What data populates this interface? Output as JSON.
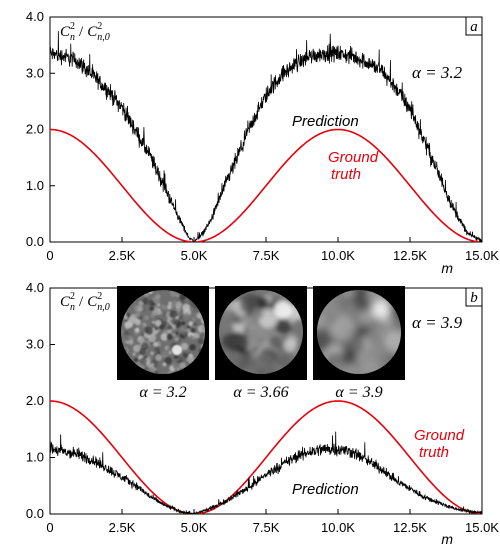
{
  "figure": {
    "xtick_labels": [
      "0",
      "2.5K",
      "5.0K",
      "7.5K",
      "10.0K",
      "12.5K",
      "15.0K"
    ],
    "ytick_labels": [
      "0.0",
      "1.0",
      "2.0",
      "3.0",
      "4.0"
    ],
    "xlabel": "m",
    "ylabel_num": "C",
    "ylabel_num_sup": "2",
    "ylabel_num_sub": "n",
    "ylabel_slash": "/",
    "ylabel_den": "C",
    "ylabel_den_sup": "2",
    "ylabel_den_sub": "n,0"
  },
  "chart_data": [
    {
      "type": "line",
      "panel_label": "a",
      "annotation": "α = 3.2",
      "xlim": [
        0,
        15000
      ],
      "ylim": [
        0,
        4
      ],
      "xticks": [
        0,
        2500,
        5000,
        7500,
        10000,
        12500,
        15000
      ],
      "yticks": [
        0,
        1,
        2,
        3,
        4
      ],
      "grid": false,
      "series": [
        {
          "name": "Prediction",
          "color": "#000000",
          "x": [
            0,
            500,
            1000,
            1500,
            2000,
            2500,
            3000,
            3500,
            4000,
            4500,
            4800,
            5000,
            5300,
            5600,
            6000,
            6500,
            7000,
            7500,
            8000,
            8500,
            9000,
            9500,
            10000,
            10500,
            11000,
            11500,
            12000,
            12500,
            13000,
            13500,
            14000,
            14500,
            15000
          ],
          "y": [
            3.35,
            3.3,
            3.2,
            2.95,
            2.7,
            2.4,
            1.95,
            1.5,
            0.95,
            0.4,
            0.1,
            0.0,
            0.15,
            0.4,
            0.9,
            1.5,
            2.1,
            2.6,
            2.95,
            3.15,
            3.3,
            3.35,
            3.35,
            3.3,
            3.2,
            3.05,
            2.75,
            2.35,
            1.8,
            1.2,
            0.6,
            0.15,
            0.02
          ]
        },
        {
          "name": "Ground truth",
          "color": "#e8000b",
          "function": "1 + cos(2*pi*x/10000)",
          "x": [
            0,
            1250,
            2500,
            3750,
            5000,
            6250,
            7500,
            8750,
            10000,
            11250,
            12500,
            13750,
            15000
          ],
          "y": [
            2.0,
            1.71,
            1.0,
            0.29,
            0.0,
            0.29,
            1.0,
            1.71,
            2.0,
            1.71,
            1.0,
            0.29,
            0.0
          ]
        }
      ]
    },
    {
      "type": "line",
      "panel_label": "b",
      "annotation": "α = 3.9",
      "xlim": [
        0,
        15000
      ],
      "ylim": [
        0,
        4
      ],
      "xticks": [
        0,
        2500,
        5000,
        7500,
        10000,
        12500,
        15000
      ],
      "yticks": [
        0,
        1,
        2,
        3,
        4
      ],
      "grid": false,
      "series": [
        {
          "name": "Prediction",
          "color": "#000000",
          "x": [
            0,
            500,
            1000,
            1500,
            2000,
            2500,
            3000,
            3500,
            4000,
            4500,
            5000,
            5500,
            6000,
            6500,
            7000,
            7500,
            8000,
            8500,
            9000,
            9500,
            10000,
            10500,
            11000,
            11500,
            12000,
            12500,
            13000,
            13500,
            14000,
            14500,
            15000
          ],
          "y": [
            1.15,
            1.1,
            1.05,
            0.95,
            0.8,
            0.65,
            0.5,
            0.3,
            0.15,
            0.05,
            0.0,
            0.08,
            0.2,
            0.35,
            0.5,
            0.7,
            0.85,
            1.0,
            1.1,
            1.15,
            1.15,
            1.1,
            0.95,
            0.8,
            0.6,
            0.45,
            0.3,
            0.2,
            0.1,
            0.05,
            0.02
          ]
        },
        {
          "name": "Ground truth",
          "color": "#e8000b",
          "function": "1 + cos(2*pi*x/10000)",
          "x": [
            0,
            1250,
            2500,
            3750,
            5000,
            6250,
            7500,
            8750,
            10000,
            11250,
            12500,
            13750,
            15000
          ],
          "y": [
            2.0,
            1.71,
            1.0,
            0.29,
            0.0,
            0.29,
            1.0,
            1.71,
            2.0,
            1.71,
            1.0,
            0.29,
            0.0
          ]
        }
      ],
      "insets": [
        {
          "label": "α = 3.2"
        },
        {
          "label": "α = 3.66"
        },
        {
          "label": "α = 3.9"
        }
      ]
    }
  ]
}
